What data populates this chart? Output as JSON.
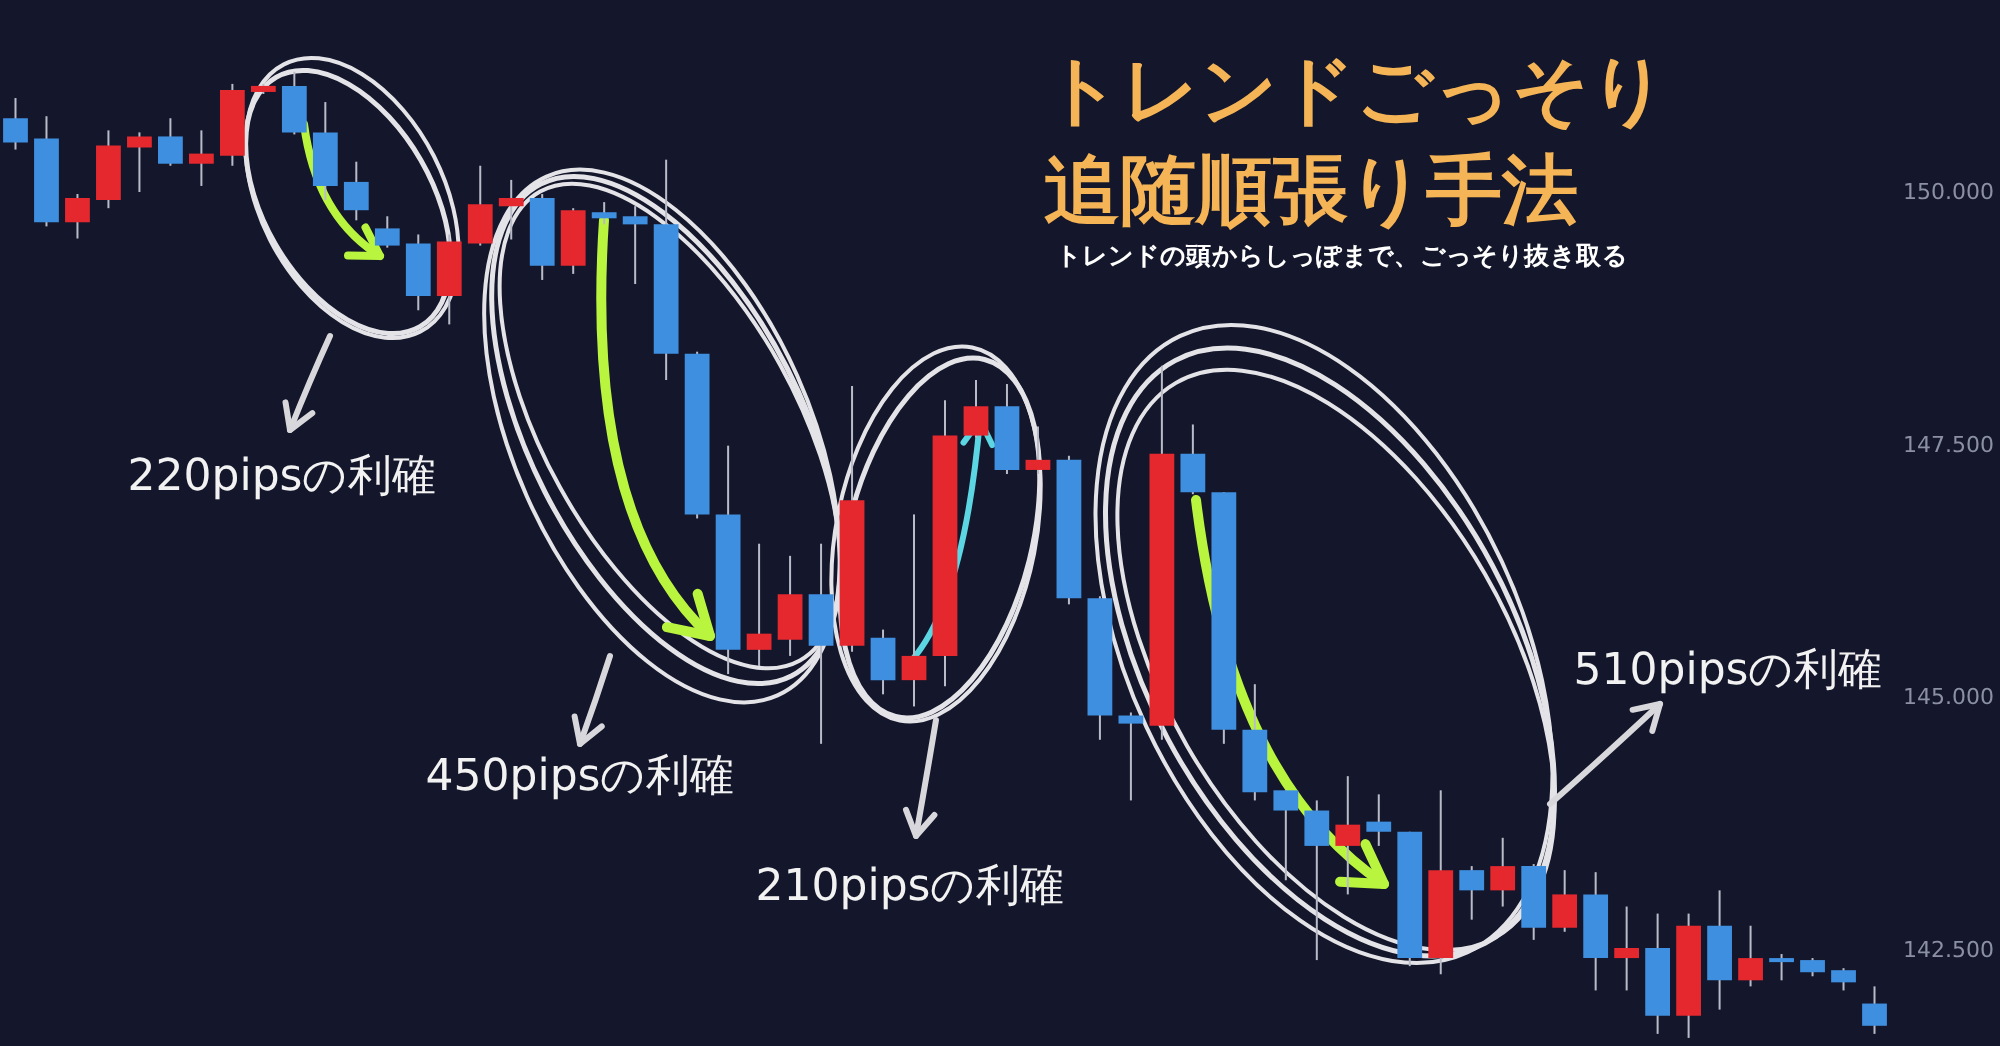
{
  "chart_data": {
    "type": "candlestick",
    "title": "トレンドごっそり追随順張り手法",
    "subtitle": "トレンドの頭からしっぽまで、ごっそり抜き取る",
    "annotations": [
      "220pipsの利確",
      "450pipsの利確",
      "210pipsの利確",
      "510pipsの利確"
    ],
    "categories": [
      null,
      null,
      null,
      null,
      null,
      null,
      null,
      null,
      null,
      null,
      null,
      null,
      null,
      null,
      null,
      null,
      null,
      null,
      null,
      null,
      null,
      null,
      null,
      null,
      null,
      null,
      null,
      null,
      null,
      null,
      null,
      null,
      null,
      null,
      null,
      null,
      null,
      null,
      null,
      null,
      null,
      null,
      null,
      null,
      null,
      null,
      null,
      null,
      null,
      null,
      null,
      null,
      null,
      null,
      null,
      null,
      null,
      null,
      null,
      null,
      null
    ],
    "ohlc": [
      [
        150.73,
        150.93,
        150.42,
        150.49
      ],
      [
        150.53,
        150.75,
        149.66,
        149.7
      ],
      [
        149.7,
        149.98,
        149.54,
        149.94
      ],
      [
        149.92,
        150.61,
        149.84,
        150.46
      ],
      [
        150.44,
        150.59,
        150.0,
        150.55
      ],
      [
        150.55,
        150.73,
        150.26,
        150.28
      ],
      [
        150.28,
        150.61,
        150.06,
        150.38
      ],
      [
        150.36,
        151.07,
        150.26,
        151.01
      ],
      [
        150.99,
        151.07,
        150.97,
        151.05
      ],
      [
        151.05,
        151.19,
        150.57,
        150.59
      ],
      [
        150.59,
        150.89,
        149.92,
        150.06
      ],
      [
        150.1,
        150.3,
        149.72,
        149.82
      ],
      [
        149.64,
        149.76,
        149.45,
        149.47
      ],
      [
        149.49,
        149.58,
        148.83,
        148.97
      ],
      [
        148.97,
        149.58,
        148.69,
        149.51
      ],
      [
        149.49,
        150.26,
        149.47,
        149.88
      ],
      [
        149.86,
        150.12,
        149.53,
        149.94
      ],
      [
        149.94,
        149.98,
        149.13,
        149.27
      ],
      [
        149.27,
        149.84,
        149.19,
        149.82
      ],
      [
        149.8,
        149.9,
        149.68,
        149.74
      ],
      [
        149.76,
        149.86,
        149.09,
        149.68
      ],
      [
        149.68,
        150.32,
        148.14,
        148.4
      ],
      [
        148.4,
        148.42,
        146.77,
        146.81
      ],
      [
        146.81,
        147.49,
        145.23,
        145.47
      ],
      [
        145.47,
        146.52,
        145.31,
        145.63
      ],
      [
        145.57,
        146.4,
        145.41,
        146.02
      ],
      [
        146.02,
        146.52,
        144.54,
        145.51
      ],
      [
        145.51,
        148.08,
        145.45,
        146.95
      ],
      [
        145.59,
        145.67,
        145.03,
        145.17
      ],
      [
        145.17,
        146.81,
        144.91,
        145.41
      ],
      [
        145.41,
        147.94,
        145.11,
        147.59
      ],
      [
        147.59,
        148.14,
        147.57,
        147.88
      ],
      [
        147.88,
        148.1,
        147.21,
        147.25
      ],
      [
        147.25,
        147.68,
        147.21,
        147.35
      ],
      [
        147.35,
        147.39,
        145.92,
        145.98
      ],
      [
        145.98,
        146.0,
        144.58,
        144.82
      ],
      [
        144.82,
        144.85,
        143.98,
        144.74
      ],
      [
        144.72,
        148.28,
        144.58,
        147.41
      ],
      [
        147.41,
        147.7,
        147.01,
        147.03
      ],
      [
        147.03,
        147.03,
        144.54,
        144.68
      ],
      [
        144.68,
        145.13,
        143.98,
        144.06
      ],
      [
        144.08,
        144.08,
        143.19,
        143.88
      ],
      [
        143.88,
        143.98,
        142.4,
        143.53
      ],
      [
        143.53,
        144.22,
        143.05,
        143.74
      ],
      [
        143.77,
        144.04,
        143.53,
        143.67
      ],
      [
        143.67,
        143.67,
        142.34,
        142.42
      ],
      [
        142.42,
        144.08,
        142.26,
        143.29
      ],
      [
        143.29,
        143.33,
        142.8,
        143.09
      ],
      [
        143.09,
        143.61,
        142.93,
        143.33
      ],
      [
        143.33,
        143.35,
        142.6,
        142.72
      ],
      [
        142.72,
        143.29,
        142.68,
        143.05
      ],
      [
        143.05,
        143.27,
        142.1,
        142.42
      ],
      [
        142.42,
        142.93,
        142.1,
        142.52
      ],
      [
        142.52,
        142.86,
        141.67,
        141.85
      ],
      [
        141.85,
        142.86,
        141.63,
        142.74
      ],
      [
        142.74,
        143.09,
        141.91,
        142.2
      ],
      [
        142.2,
        142.74,
        142.14,
        142.42
      ],
      [
        142.42,
        142.46,
        142.2,
        142.38
      ],
      [
        142.4,
        142.42,
        142.24,
        142.28
      ],
      [
        142.3,
        142.32,
        142.1,
        142.18
      ],
      [
        141.97,
        142.14,
        141.67,
        141.75
      ]
    ],
    "colors": [
      "#3f8fe0",
      "#3f8fe0",
      "#e5282e",
      "#e5282e",
      "#e5282e",
      "#3f8fe0",
      "#e5282e",
      "#e5282e",
      "#e5282e",
      "#3f8fe0",
      "#3f8fe0",
      "#3f8fe0",
      "#3f8fe0",
      "#3f8fe0",
      "#e5282e",
      "#e5282e",
      "#e5282e",
      "#3f8fe0",
      "#e5282e",
      "#3f8fe0",
      "#3f8fe0",
      "#3f8fe0",
      "#3f8fe0",
      "#3f8fe0",
      "#e5282e",
      "#e5282e",
      "#3f8fe0",
      "#e5282e",
      "#3f8fe0",
      "#e5282e",
      "#e5282e",
      "#e5282e",
      "#3f8fe0",
      "#e5282e",
      "#3f8fe0",
      "#3f8fe0",
      "#3f8fe0",
      "#e5282e",
      "#3f8fe0",
      "#3f8fe0",
      "#3f8fe0",
      "#3f8fe0",
      "#3f8fe0",
      "#e5282e",
      "#3f8fe0",
      "#3f8fe0",
      "#e5282e",
      "#3f8fe0",
      "#e5282e",
      "#3f8fe0",
      "#e5282e",
      "#3f8fe0",
      "#e5282e",
      "#3f8fe0",
      "#e5282e",
      "#3f8fe0",
      "#e5282e",
      "#3f8fe0",
      "#3f8fe0",
      "#3f8fe0",
      "#3f8fe0"
    ],
    "ylim": [
      141.55,
      151.9
    ],
    "yticks": [
      {
        "value": 150,
        "label": "150.000"
      },
      {
        "value": 147.5,
        "label": "147.500"
      },
      {
        "value": 145,
        "label": "145.000"
      },
      {
        "value": 142.5,
        "label": "142.500"
      }
    ],
    "tick_labels": "y"
  }
}
